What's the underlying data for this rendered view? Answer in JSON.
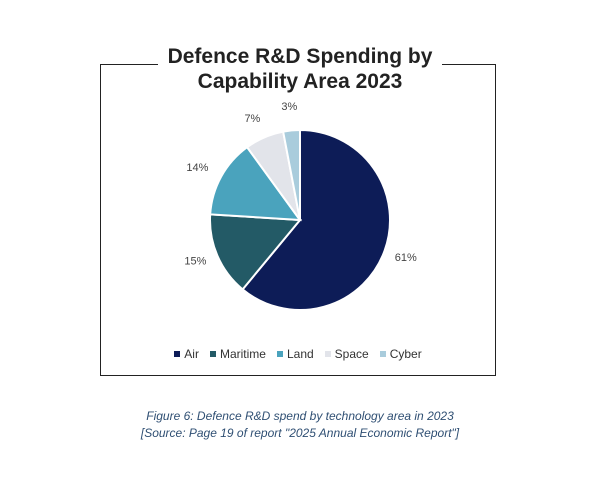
{
  "chart_data": {
    "type": "pie",
    "title": "Defence R&D Spending by Capability Area 2023",
    "title_lines": [
      "Defence R&D Spending by",
      "Capability Area 2023"
    ],
    "categories": [
      "Air",
      "Maritime",
      "Land",
      "Space",
      "Cyber"
    ],
    "values": [
      61,
      15,
      14,
      7,
      3
    ],
    "labels": [
      "61%",
      "15%",
      "14%",
      "7%",
      "3%"
    ],
    "colors": [
      "#0d1c57",
      "#235a66",
      "#4aa3bd",
      "#e2e4ea",
      "#a9ccdc"
    ],
    "legend": "bottom",
    "start": "12 o'clock, clockwise"
  },
  "caption": {
    "line1": "Figure 6: Defence R&D spend by technology area in 2023",
    "line2": "[Source: Page 19 of report \"2025 Annual Economic Report\"]"
  }
}
